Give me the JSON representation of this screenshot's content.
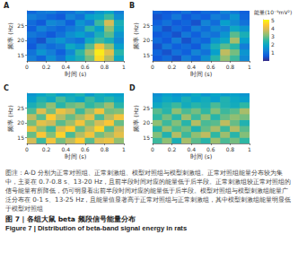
{
  "chart_data": [
    {
      "type": "heatmap",
      "title": "A",
      "x_label": "时间 (s)",
      "y_label": "频率 (Hz)",
      "x": [
        0.05,
        0.15,
        0.25,
        0.35,
        0.45,
        0.55,
        0.65,
        0.75,
        0.85,
        0.95
      ],
      "y": [
        14,
        16,
        18,
        20,
        22,
        24,
        26,
        28,
        30
      ],
      "xlim": [
        0,
        1
      ],
      "xticks": [
        0,
        0.2,
        0.4,
        0.6,
        0.8,
        1
      ],
      "ylim": [
        13,
        30
      ],
      "yticks": [
        15,
        20,
        25
      ],
      "cells": [
        [
          1.2,
          0.8,
          1.5,
          1.0,
          1.8,
          2.2,
          3.0,
          4.6,
          3.5,
          2.0
        ],
        [
          1.0,
          1.6,
          1.2,
          0.7,
          1.4,
          2.5,
          3.4,
          4.8,
          4.0,
          2.4
        ],
        [
          0.6,
          1.2,
          0.9,
          1.1,
          2.0,
          1.6,
          2.8,
          4.2,
          3.2,
          1.8
        ],
        [
          0.8,
          0.5,
          1.3,
          1.6,
          1.2,
          1.0,
          2.0,
          2.6,
          2.2,
          1.4
        ],
        [
          1.1,
          0.9,
          0.6,
          1.0,
          1.5,
          1.8,
          1.4,
          2.2,
          2.8,
          1.6
        ],
        [
          0.7,
          1.3,
          1.0,
          0.8,
          1.1,
          1.4,
          2.4,
          1.8,
          3.2,
          2.0
        ],
        [
          0.9,
          0.6,
          1.4,
          1.2,
          0.7,
          1.6,
          1.2,
          2.6,
          3.8,
          2.2
        ],
        [
          1.2,
          1.0,
          0.8,
          0.6,
          1.3,
          1.0,
          1.8,
          2.0,
          2.6,
          1.5
        ],
        [
          0.8,
          1.1,
          1.2,
          0.9,
          1.0,
          1.4,
          1.1,
          1.6,
          1.9,
          1.2
        ]
      ]
    },
    {
      "type": "heatmap",
      "title": "B",
      "x_label": "时间 (s)",
      "y_label": "频率 (Hz)",
      "x": [
        0.05,
        0.15,
        0.25,
        0.35,
        0.45,
        0.55,
        0.65,
        0.75,
        0.85,
        0.95
      ],
      "y": [
        14,
        16,
        18,
        20,
        22,
        24,
        26,
        28,
        30
      ],
      "xlim": [
        0,
        1
      ],
      "xticks": [
        0,
        0.2,
        0.4,
        0.6,
        0.8,
        1
      ],
      "ylim": [
        13,
        30
      ],
      "yticks": [
        15,
        20,
        25
      ],
      "cells": [
        [
          0.6,
          0.9,
          0.5,
          1.2,
          0.8,
          1.5,
          2.4,
          3.2,
          2.6,
          1.4
        ],
        [
          0.8,
          0.5,
          1.0,
          0.7,
          1.3,
          1.0,
          1.8,
          3.6,
          3.0,
          1.6
        ],
        [
          0.5,
          1.1,
          0.7,
          0.9,
          0.6,
          1.4,
          2.2,
          2.8,
          2.4,
          1.2
        ],
        [
          0.9,
          0.6,
          1.2,
          0.5,
          1.0,
          0.8,
          1.6,
          2.0,
          3.4,
          1.8
        ],
        [
          0.6,
          0.8,
          0.5,
          1.1,
          0.7,
          1.2,
          1.0,
          1.6,
          2.8,
          2.2
        ],
        [
          1.0,
          0.5,
          0.9,
          0.6,
          1.2,
          0.9,
          1.4,
          1.2,
          2.0,
          1.6
        ],
        [
          0.7,
          1.0,
          0.6,
          0.8,
          0.5,
          1.3,
          0.9,
          1.8,
          1.4,
          1.0
        ],
        [
          0.5,
          0.7,
          1.1,
          0.6,
          0.9,
          0.7,
          1.2,
          1.0,
          1.6,
          0.8
        ],
        [
          0.8,
          0.6,
          0.7,
          1.0,
          0.6,
          0.9,
          0.8,
          1.3,
          1.1,
          0.7
        ]
      ]
    },
    {
      "type": "heatmap",
      "title": "C",
      "x_label": "时间 (s)",
      "y_label": "频率 (Hz)",
      "x": [
        0.05,
        0.15,
        0.25,
        0.35,
        0.45,
        0.55,
        0.65,
        0.75,
        0.85,
        0.95
      ],
      "y": [
        14,
        16,
        18,
        20,
        22,
        24,
        26,
        28,
        30
      ],
      "xlim": [
        0,
        1
      ],
      "xticks": [
        0,
        0.2,
        0.4,
        0.6,
        0.8,
        1
      ],
      "ylim": [
        13,
        30
      ],
      "yticks": [
        15,
        20,
        25
      ],
      "cells": [
        [
          3.8,
          2.6,
          4.2,
          3.0,
          3.6,
          4.4,
          2.8,
          3.9,
          4.1,
          3.2
        ],
        [
          2.9,
          4.3,
          3.1,
          4.5,
          2.7,
          3.5,
          4.2,
          3.0,
          3.4,
          4.0
        ],
        [
          4.1,
          3.2,
          2.6,
          3.8,
          4.4,
          2.9,
          3.6,
          4.5,
          2.8,
          3.7
        ],
        [
          3.0,
          4.0,
          3.7,
          2.8,
          3.3,
          4.2,
          3.1,
          3.8,
          4.3,
          2.9
        ],
        [
          3.6,
          2.8,
          4.4,
          3.5,
          2.9,
          3.4,
          4.0,
          2.7,
          3.5,
          4.2
        ],
        [
          2.7,
          3.9,
          3.0,
          4.1,
          3.7,
          2.6,
          3.3,
          4.2,
          3.0,
          3.1
        ],
        [
          2.2,
          2.6,
          3.2,
          2.4,
          2.9,
          3.1,
          2.5,
          2.8,
          3.3,
          2.4
        ],
        [
          1.8,
          2.3,
          2.0,
          2.7,
          2.2,
          1.9,
          2.6,
          2.1,
          2.4,
          2.0
        ],
        [
          1.6,
          1.9,
          2.2,
          1.8,
          2.0,
          2.3,
          1.7,
          2.1,
          1.9,
          1.8
        ]
      ]
    },
    {
      "type": "heatmap",
      "title": "D",
      "x_label": "时间 (s)",
      "y_label": "频率 (Hz)",
      "x": [
        0.05,
        0.15,
        0.25,
        0.35,
        0.45,
        0.55,
        0.65,
        0.75,
        0.85,
        0.95
      ],
      "y": [
        14,
        16,
        18,
        20,
        22,
        24,
        26,
        28,
        30
      ],
      "xlim": [
        0,
        1
      ],
      "xticks": [
        0,
        0.2,
        0.4,
        0.6,
        0.8,
        1
      ],
      "ylim": [
        13,
        30
      ],
      "yticks": [
        15,
        20,
        25
      ],
      "cells": [
        [
          2.6,
          3.2,
          2.2,
          3.4,
          2.8,
          2.4,
          3.3,
          2.7,
          3.0,
          2.5
        ],
        [
          3.1,
          2.3,
          3.5,
          2.6,
          3.2,
          3.6,
          2.5,
          3.3,
          2.4,
          3.1
        ],
        [
          2.4,
          3.3,
          2.7,
          3.0,
          2.3,
          2.9,
          3.4,
          2.6,
          3.5,
          2.8
        ],
        [
          3.2,
          2.6,
          3.1,
          2.4,
          3.5,
          2.7,
          2.8,
          3.6,
          2.9,
          2.3
        ],
        [
          2.5,
          3.0,
          2.4,
          3.3,
          2.6,
          3.2,
          2.4,
          2.9,
          3.2,
          3.0
        ],
        [
          2.8,
          2.4,
          3.2,
          2.7,
          3.0,
          2.5,
          3.1,
          2.6,
          2.8,
          3.4
        ],
        [
          2.0,
          2.3,
          2.6,
          2.1,
          2.4,
          2.2,
          2.7,
          2.3,
          2.1,
          2.5
        ],
        [
          1.7,
          2.0,
          1.8,
          2.2,
          1.9,
          2.1,
          1.8,
          2.3,
          2.0,
          1.8
        ],
        [
          1.5,
          1.8,
          1.6,
          1.7,
          2.0,
          1.6,
          1.9,
          1.7,
          1.8,
          1.6
        ]
      ]
    }
  ],
  "colorbar": {
    "label": "能量(10⁻⁹mV²)",
    "range": [
      0,
      5
    ],
    "ticks": [
      1,
      2,
      3,
      4,
      5
    ],
    "colors": [
      "#352a87",
      "#0f5cdd",
      "#1481d6",
      "#06a4ca",
      "#2eb7a4",
      "#87bf77",
      "#d1bb59",
      "#fec832",
      "#f9fb0e"
    ]
  },
  "caption": {
    "note": "图注：A-D 分别为正常对照组、正常刺激组、模型对照组与模型刺激组。正常对照组能量分布较为集中，主要在 0.7-0.8 s、13-20 Hz，且前半段时间对应的能量低于后半段。正常刺激组较正常对照组的信号能量有所降低，仍可明显看出前半段时间对应的能量低于后半段。模型对照组与模型刺激组能量广泛分布在 0-1 s、13-25 Hz，且能量值显著高于正常对照组与正常刺激组，其中模型刺激组能量明显低于模型对照组",
    "title": "图 7 | 各组大鼠 beta 频段信号能量分布",
    "title_en": "Figure 7 | Distribution of beta-band signal energy in rats"
  }
}
